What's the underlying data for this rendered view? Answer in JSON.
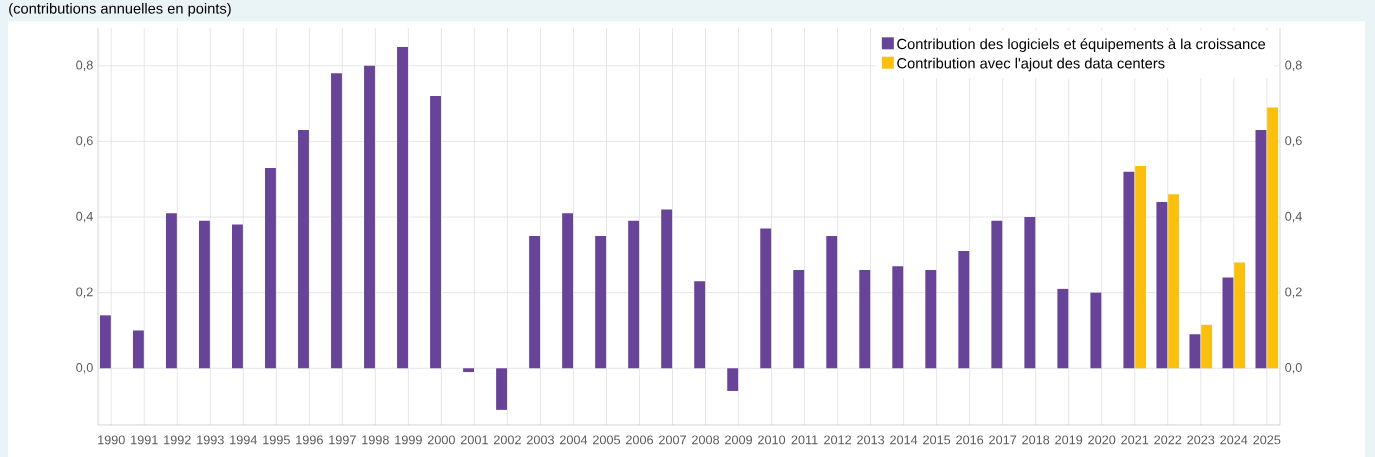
{
  "chart_data": {
    "type": "bar",
    "subtitle": "(contributions annuelles en points)",
    "categories": [
      "1990",
      "1991",
      "1992",
      "1993",
      "1994",
      "1995",
      "1996",
      "1997",
      "1998",
      "1999",
      "2000",
      "2001",
      "2002",
      "2003",
      "2004",
      "2005",
      "2006",
      "2007",
      "2008",
      "2009",
      "2010",
      "2011",
      "2012",
      "2013",
      "2014",
      "2015",
      "2016",
      "2017",
      "2018",
      "2019",
      "2020",
      "2021",
      "2022",
      "2023",
      "2024",
      "2025"
    ],
    "series": [
      {
        "name": "Contribution des logiciels et équipements à la croissance",
        "color": "#674497",
        "values": [
          0.14,
          0.1,
          0.41,
          0.39,
          0.38,
          0.53,
          0.63,
          0.78,
          0.8,
          0.85,
          0.72,
          -0.01,
          -0.11,
          0.35,
          0.41,
          0.35,
          0.39,
          0.42,
          0.23,
          -0.06,
          0.37,
          0.26,
          0.35,
          0.26,
          0.27,
          0.26,
          0.31,
          0.39,
          0.4,
          0.21,
          0.2,
          0.52,
          0.44,
          0.09,
          0.24,
          0.63
        ]
      },
      {
        "name": "Contribution avec l'ajout des data centers",
        "color": "#fbbf0e",
        "values": [
          null,
          null,
          null,
          null,
          null,
          null,
          null,
          null,
          null,
          null,
          null,
          null,
          null,
          null,
          null,
          null,
          null,
          null,
          null,
          null,
          null,
          null,
          null,
          null,
          null,
          null,
          null,
          null,
          null,
          null,
          null,
          0.535,
          0.46,
          0.115,
          0.28,
          0.69
        ]
      }
    ],
    "ylim": [
      -0.15,
      0.9
    ],
    "yticks": [
      {
        "value": 0,
        "label": "0,0"
      },
      {
        "value": 0.2,
        "label": "0,2"
      },
      {
        "value": 0.4,
        "label": "0,4"
      },
      {
        "value": 0.6,
        "label": "0,6"
      },
      {
        "value": 0.8,
        "label": "0,8"
      }
    ],
    "y2lim": [
      -0.15,
      0.9
    ],
    "y2ticks": [
      {
        "value": 0,
        "label": "0,0"
      },
      {
        "value": 0.2,
        "label": "0,2"
      },
      {
        "value": 0.4,
        "label": "0,4"
      },
      {
        "value": 0.6,
        "label": "0,6"
      },
      {
        "value": 0.8,
        "label": "0,8"
      }
    ],
    "grid": true,
    "legend": "top right"
  }
}
